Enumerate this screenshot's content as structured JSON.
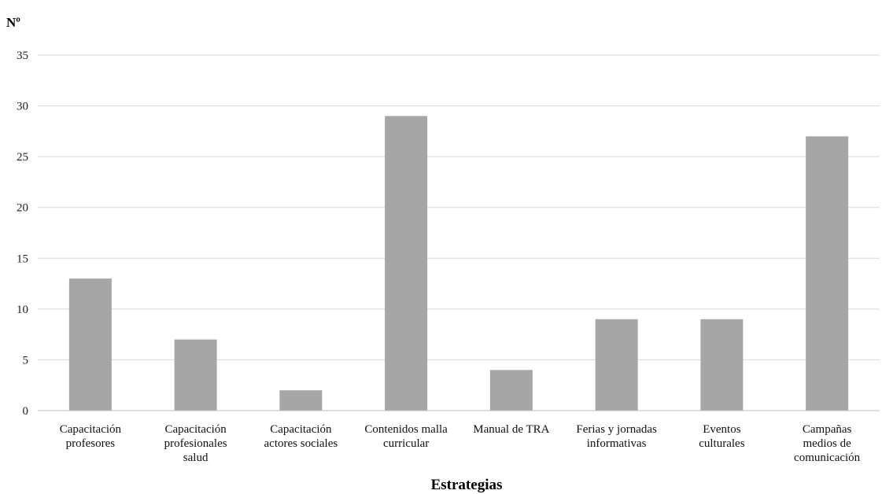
{
  "chart_data": {
    "type": "bar",
    "title": "",
    "xlabel": "Estrategias",
    "ylabel": "Nº",
    "ylim": [
      0,
      35
    ],
    "yticks": [
      0,
      5,
      10,
      15,
      20,
      25,
      30,
      35
    ],
    "grid": true,
    "bar_color": "#a6a6a6",
    "categories": [
      [
        "Capacitación",
        "profesores"
      ],
      [
        "Capacitación",
        "profesionales",
        "salud"
      ],
      [
        "Capacitación",
        "actores sociales"
      ],
      [
        "Contenidos malla",
        "curricular"
      ],
      [
        "Manual de TRA"
      ],
      [
        "Ferias y jornadas",
        "informativas"
      ],
      [
        "Eventos",
        "culturales"
      ],
      [
        "Campañas",
        "medios de",
        "comunicación"
      ]
    ],
    "values": [
      13,
      7,
      2,
      29,
      4,
      9,
      9,
      27
    ]
  }
}
